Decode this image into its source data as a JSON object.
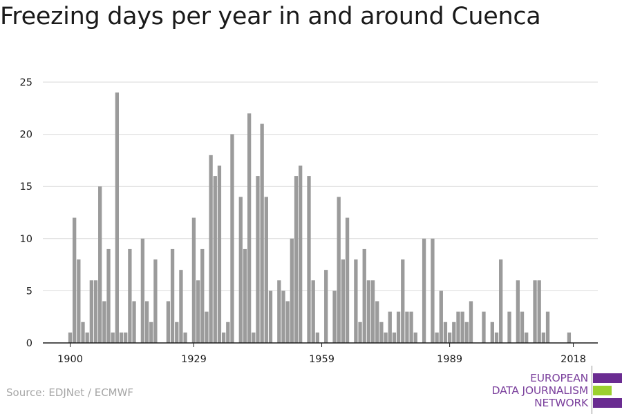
{
  "title": "Freezing days per year in and around Cuenca",
  "source": "Source: EDJNet / ECMWF",
  "logo": {
    "lines": [
      "EUROPEAN",
      "DATA JOURNALISM",
      "NETWORK"
    ],
    "colors": {
      "purple": "#6a2c91",
      "green": "#9bd12e",
      "text": "#7a3f9c"
    }
  },
  "colors": {
    "bar": "#9b9b9b",
    "grid": "#d9d9d9",
    "axis": "#1a1a1a",
    "label": "#1a1a1a"
  },
  "chart_data": {
    "type": "bar",
    "title": "Freezing days per year in and around Cuenca",
    "xlabel": "",
    "ylabel": "",
    "ylim": [
      0,
      25
    ],
    "yticks": [
      0,
      5,
      10,
      15,
      20,
      25
    ],
    "xlim": [
      1896,
      2022
    ],
    "xticks": [
      1900,
      1929,
      1959,
      1989,
      2018
    ],
    "grid": true,
    "x": [
      1900,
      1901,
      1902,
      1903,
      1904,
      1905,
      1906,
      1907,
      1908,
      1909,
      1910,
      1911,
      1912,
      1913,
      1914,
      1915,
      1916,
      1917,
      1918,
      1919,
      1920,
      1921,
      1922,
      1923,
      1924,
      1925,
      1926,
      1927,
      1928,
      1929,
      1930,
      1931,
      1932,
      1933,
      1934,
      1935,
      1936,
      1937,
      1938,
      1939,
      1940,
      1941,
      1942,
      1943,
      1944,
      1945,
      1946,
      1947,
      1948,
      1949,
      1950,
      1951,
      1952,
      1953,
      1954,
      1955,
      1956,
      1957,
      1958,
      1959,
      1960,
      1961,
      1962,
      1963,
      1964,
      1965,
      1966,
      1967,
      1968,
      1969,
      1970,
      1971,
      1972,
      1973,
      1974,
      1975,
      1976,
      1977,
      1978,
      1979,
      1980,
      1981,
      1982,
      1983,
      1984,
      1985,
      1986,
      1987,
      1988,
      1989,
      1990,
      1991,
      1992,
      1993,
      1994,
      1995,
      1996,
      1997,
      1998,
      1999,
      2000,
      2001,
      2002,
      2003,
      2004,
      2005,
      2006,
      2007,
      2008,
      2009,
      2010,
      2011,
      2012,
      2013,
      2014,
      2015,
      2016,
      2017,
      2018
    ],
    "values": [
      1,
      12,
      8,
      2,
      1,
      6,
      6,
      15,
      4,
      9,
      1,
      24,
      1,
      1,
      9,
      4,
      0,
      10,
      4,
      2,
      8,
      0,
      0,
      4,
      9,
      2,
      7,
      1,
      0,
      12,
      6,
      9,
      3,
      18,
      16,
      17,
      1,
      2,
      20,
      0,
      14,
      9,
      22,
      1,
      16,
      21,
      14,
      5,
      0,
      6,
      5,
      4,
      10,
      16,
      17,
      0,
      16,
      6,
      1,
      0,
      7,
      0,
      5,
      14,
      8,
      12,
      0,
      8,
      2,
      9,
      6,
      6,
      4,
      2,
      1,
      3,
      1,
      3,
      8,
      3,
      3,
      1,
      0,
      10,
      0,
      10,
      1,
      5,
      2,
      1,
      2,
      3,
      3,
      2,
      4,
      0,
      0,
      3,
      0,
      2,
      1,
      8,
      0,
      3,
      0,
      6,
      3,
      1,
      0,
      6,
      6,
      1,
      3,
      0,
      0,
      0,
      0,
      1,
      0
    ]
  }
}
